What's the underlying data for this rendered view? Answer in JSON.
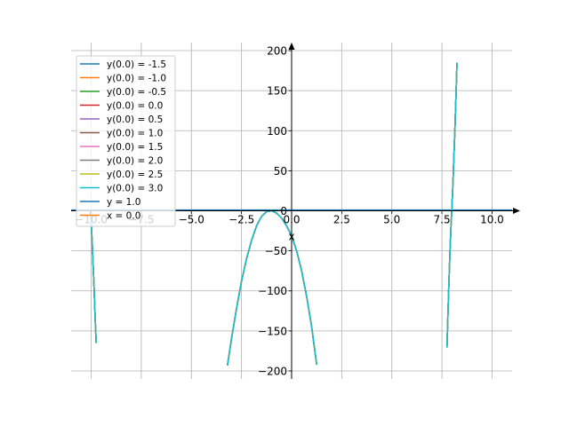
{
  "chart_data": {
    "type": "line",
    "xlabel": "x",
    "ylabel": "",
    "xlim": [
      -11.0,
      11.0
    ],
    "ylim": [
      -210,
      210
    ],
    "grid": true,
    "legend_placement": "top-left",
    "x_ticks": [
      -10.0,
      -7.5,
      -5.0,
      -2.5,
      0.0,
      2.5,
      5.0,
      7.5,
      10.0
    ],
    "x_tick_labels": [
      "−10.0",
      "−7.5",
      "−5.0",
      "−2.5",
      "0.0",
      "2.5",
      "5.0",
      "7.5",
      "10.0"
    ],
    "y_ticks": [
      -200,
      -150,
      -100,
      -50,
      0,
      50,
      100,
      150,
      200
    ],
    "y_tick_labels": [
      "−200",
      "−150",
      "−100",
      "−50",
      "0",
      "50",
      "100",
      "150",
      "200"
    ],
    "colors": [
      "#1f77b4",
      "#ff7f0e",
      "#2ca02c",
      "#d62728",
      "#9467bd",
      "#8c564b",
      "#e377c2",
      "#7f7f7f",
      "#bcbd22",
      "#17becf",
      "#1f77b4",
      "#ff7f0e"
    ],
    "series": [
      {
        "name": "y(0.0) = -1.5",
        "kind": "solution",
        "y0": -1.5
      },
      {
        "name": "y(0.0) = -1.0",
        "kind": "solution",
        "y0": -1.0
      },
      {
        "name": "y(0.0) = -0.5",
        "kind": "solution",
        "y0": -0.5
      },
      {
        "name": "y(0.0) = 0.0",
        "kind": "solution",
        "y0": 0.0
      },
      {
        "name": "y(0.0) = 0.5",
        "kind": "solution",
        "y0": 0.5
      },
      {
        "name": "y(0.0) = 1.0",
        "kind": "solution",
        "y0": 1.0
      },
      {
        "name": "y(0.0) = 1.5",
        "kind": "solution",
        "y0": 1.5
      },
      {
        "name": "y(0.0) = 2.0",
        "kind": "solution",
        "y0": 2.0
      },
      {
        "name": "y(0.0) = 2.5",
        "kind": "solution",
        "y0": 2.5
      },
      {
        "name": "y(0.0) = 3.0",
        "kind": "solution",
        "y0": 3.0
      },
      {
        "name": "y = 1.0",
        "kind": "hline",
        "value": 1.0
      },
      {
        "name": "x = 0.0",
        "kind": "vline",
        "value": 0.0
      }
    ],
    "curve_segments": [
      {
        "x": [
          -10.05,
          -10.0,
          -9.95,
          -9.9,
          -9.85,
          -9.8,
          -9.75
        ],
        "y": [
          0.5,
          -15,
          -40,
          -70,
          -100,
          -135,
          -165
        ]
      },
      {
        "x": [
          -3.2,
          -3.0,
          -2.75,
          -2.5,
          -2.25,
          -2.0,
          -1.75,
          -1.5,
          -1.25,
          -1.0,
          -0.75,
          -0.5,
          -0.25,
          0.0,
          0.25,
          0.5,
          0.75,
          1.0,
          1.25
        ],
        "y": [
          -193,
          -160,
          -122,
          -88,
          -60,
          -37,
          -19,
          -7,
          -1,
          0,
          -3,
          -9,
          -19,
          -31,
          -50,
          -75,
          -107,
          -145,
          -192
        ]
      },
      {
        "x": [
          7.75,
          7.8,
          7.85,
          7.9,
          7.95,
          8.0,
          8.05,
          8.1,
          8.15,
          8.2,
          8.25
        ],
        "y": [
          -171,
          -128,
          -88,
          -52,
          -20,
          5,
          35,
          70,
          105,
          143,
          185
        ]
      }
    ]
  }
}
